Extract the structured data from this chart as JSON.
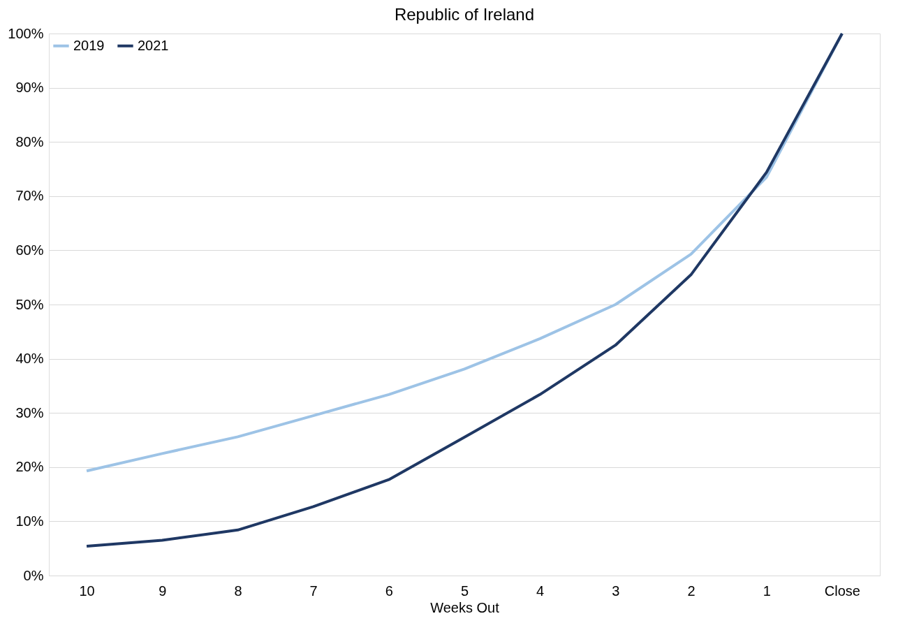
{
  "chart_data": {
    "type": "line",
    "title": "Republic of Ireland",
    "xlabel": "Weeks Out",
    "categories": [
      "10",
      "9",
      "8",
      "7",
      "6",
      "5",
      "4",
      "3",
      "2",
      "1",
      "Close"
    ],
    "series": [
      {
        "name": "2019",
        "color": "#9dc3e6",
        "values": [
          19.3,
          22.5,
          25.6,
          29.5,
          33.4,
          38.1,
          43.7,
          50.0,
          59.3,
          73.5,
          100
        ]
      },
      {
        "name": "2021",
        "color": "#1f3864",
        "values": [
          5.4,
          6.5,
          8.4,
          12.7,
          17.7,
          25.5,
          33.4,
          42.5,
          55.5,
          74.4,
          100
        ]
      }
    ],
    "ylim": [
      0,
      100
    ],
    "yticks": [
      {
        "value": 0,
        "label": "0%"
      },
      {
        "value": 10,
        "label": "10%"
      },
      {
        "value": 20,
        "label": "20%"
      },
      {
        "value": 30,
        "label": "30%"
      },
      {
        "value": 40,
        "label": "40%"
      },
      {
        "value": 50,
        "label": "50%"
      },
      {
        "value": 60,
        "label": "60%"
      },
      {
        "value": 70,
        "label": "70%"
      },
      {
        "value": 80,
        "label": "80%"
      },
      {
        "value": 90,
        "label": "90%"
      },
      {
        "value": 100,
        "label": "100%"
      }
    ],
    "grid": "y",
    "legend": "top left",
    "line_style": "solid"
  }
}
